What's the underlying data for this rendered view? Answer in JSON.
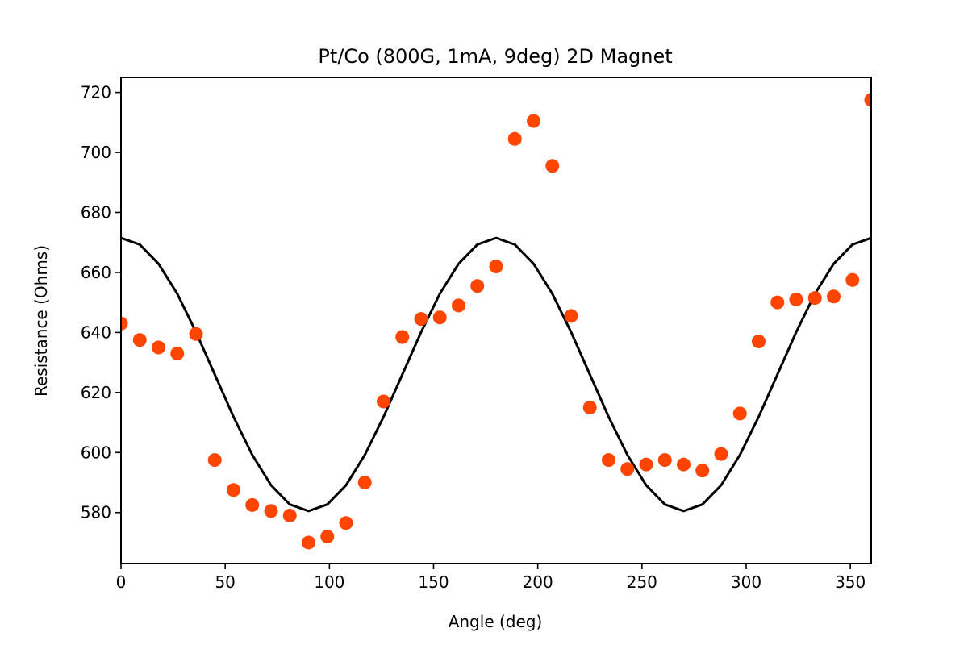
{
  "chart_data": {
    "type": "scatter",
    "title": "Pt/Co (800G, 1mA, 9deg) 2D Magnet",
    "xlabel": "Angle (deg)",
    "ylabel": "Resistance (Ohms)",
    "xlim": [
      0,
      360
    ],
    "ylim": [
      563,
      725
    ],
    "xticks": [
      0,
      50,
      100,
      150,
      200,
      250,
      300,
      350
    ],
    "xtick_labels": [
      "0",
      "50",
      "100",
      "150",
      "200",
      "250",
      "300",
      "350"
    ],
    "yticks": [
      580,
      600,
      620,
      640,
      660,
      680,
      700,
      720
    ],
    "ytick_labels": [
      "580",
      "600",
      "620",
      "640",
      "660",
      "680",
      "700",
      "720"
    ],
    "grid": false,
    "legend": "none",
    "series": [
      {
        "kind": "scatter",
        "color": "#ff4500",
        "x": [
          0,
          9,
          18,
          27,
          36,
          45,
          54,
          63,
          72,
          81,
          90,
          99,
          108,
          117,
          126,
          135,
          144,
          153,
          162,
          171,
          180,
          189,
          198,
          207,
          216,
          225,
          234,
          243,
          252,
          261,
          270,
          279,
          288,
          297,
          306,
          315,
          324,
          333,
          342,
          351,
          360
        ],
        "y": [
          643,
          637.5,
          635,
          633,
          639.5,
          597.5,
          587.5,
          582.5,
          580.5,
          579,
          570,
          572,
          576.5,
          590,
          617,
          638.5,
          644.5,
          645,
          649,
          655.5,
          662,
          704.5,
          710.5,
          695.5,
          645.5,
          615,
          597.5,
          594.5,
          596,
          597.5,
          596,
          594,
          599.5,
          613,
          637,
          650,
          651,
          651.5,
          652,
          657.5,
          717.5
        ]
      },
      {
        "kind": "line",
        "color": "#000000",
        "x": [
          0,
          9,
          18,
          27,
          36,
          45,
          54,
          63,
          72,
          81,
          90,
          99,
          108,
          117,
          126,
          135,
          144,
          153,
          162,
          171,
          180,
          189,
          198,
          207,
          216,
          225,
          234,
          243,
          252,
          261,
          270,
          279,
          288,
          297,
          306,
          315,
          324,
          333,
          342,
          351,
          360
        ],
        "y": [
          671.5,
          669.3,
          662.9,
          652.9,
          640.1,
          626,
          611.9,
          599.2,
          589.1,
          582.7,
          580.5,
          582.7,
          589.1,
          599.2,
          611.9,
          626,
          640.1,
          652.9,
          662.9,
          669.3,
          671.5,
          669.3,
          662.9,
          652.9,
          640.1,
          626,
          611.9,
          599.2,
          589.1,
          582.7,
          580.5,
          582.7,
          589.1,
          599.2,
          611.9,
          626,
          640.1,
          652.9,
          662.9,
          669.3,
          671.5
        ]
      }
    ]
  }
}
